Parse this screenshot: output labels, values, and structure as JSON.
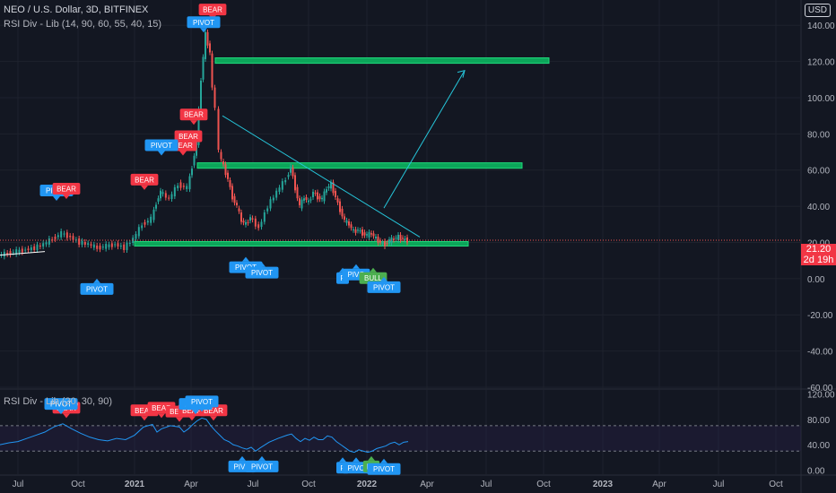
{
  "header": {
    "title": "NEO / U.S. Dollar, 3D, BITFINEX",
    "indicator": "RSI Div - Lib (14, 90, 60, 55, 40, 15)",
    "currency_button": "USD"
  },
  "price_tag": {
    "price": "21.20",
    "countdown": "2d 19h"
  },
  "rsi_pane": {
    "legend": "RSI Div - Lib (20, 30, 90)"
  },
  "colors": {
    "background": "#131722",
    "up": "#26a69a",
    "down": "#ef5350",
    "bear_label": "#f23645",
    "pivot_label": "#2196f3",
    "bull_label": "#4caf50",
    "green_zone": "#0ca55a",
    "trend_line": "#26c6da",
    "rsi_line": "#2196f3"
  },
  "icons": [
    "currency-selector-icon"
  ],
  "chart_data": [
    {
      "type": "line",
      "title": "NEO / U.S. Dollar, 3D, BITFINEX",
      "x_tick_labels": [
        "Jul",
        "Oct",
        "2021",
        "Apr",
        "Jul",
        "Oct",
        "2022",
        "Apr",
        "Jul",
        "Oct",
        "2023",
        "Apr",
        "Jul",
        "Oct"
      ],
      "y_tick_labels": [
        "140.00",
        "120.00",
        "100.00",
        "80.00",
        "60.00",
        "40.00",
        "20.00",
        "0.00",
        "-20.00",
        "-40.00",
        "-60.00"
      ],
      "ylim": [
        -60,
        150
      ],
      "last_price": 21.2,
      "series": [
        {
          "values": [
            [
              0,
              13
            ],
            [
              10,
              14
            ],
            [
              20,
              15
            ],
            [
              30,
              16
            ],
            [
              40,
              17
            ],
            [
              50,
              19
            ],
            [
              60,
              22
            ],
            [
              70,
              25
            ],
            [
              80,
              23
            ],
            [
              90,
              20
            ],
            [
              100,
              19
            ],
            [
              110,
              17
            ],
            [
              120,
              18
            ],
            [
              130,
              19
            ],
            [
              140,
              17
            ],
            [
              150,
              22
            ],
            [
              160,
              30
            ],
            [
              170,
              33
            ],
            [
              175,
              42
            ],
            [
              180,
              48
            ],
            [
              190,
              44
            ],
            [
              200,
              52
            ],
            [
              210,
              50
            ],
            [
              215,
              62
            ],
            [
              220,
              75
            ],
            [
              225,
              110
            ],
            [
              230,
              135
            ],
            [
              235,
              125
            ],
            [
              238,
              105
            ],
            [
              242,
              95
            ],
            [
              245,
              70
            ],
            [
              250,
              62
            ],
            [
              255,
              55
            ],
            [
              260,
              45
            ],
            [
              265,
              40
            ],
            [
              270,
              32
            ],
            [
              275,
              30
            ],
            [
              280,
              34
            ],
            [
              290,
              28
            ],
            [
              300,
              40
            ],
            [
              310,
              48
            ],
            [
              320,
              55
            ],
            [
              325,
              62
            ],
            [
              330,
              50
            ],
            [
              335,
              40
            ],
            [
              340,
              45
            ],
            [
              345,
              42
            ],
            [
              350,
              48
            ],
            [
              355,
              45
            ],
            [
              360,
              44
            ],
            [
              365,
              50
            ],
            [
              370,
              52
            ],
            [
              375,
              45
            ],
            [
              380,
              38
            ],
            [
              385,
              32
            ],
            [
              390,
              30
            ],
            [
              395,
              26
            ],
            [
              400,
              27
            ],
            [
              405,
              25
            ],
            [
              410,
              24
            ],
            [
              415,
              25
            ],
            [
              420,
              22
            ],
            [
              425,
              20
            ],
            [
              430,
              19
            ],
            [
              435,
              21
            ],
            [
              440,
              22
            ],
            [
              445,
              23
            ],
            [
              450,
              22
            ],
            [
              455,
              21.2
            ]
          ]
        }
      ],
      "zones": [
        {
          "name": "zone-high",
          "x_start": 240,
          "x_end": 612,
          "y_low": 119,
          "y_high": 122
        },
        {
          "name": "zone-mid",
          "x_start": 220,
          "x_end": 582,
          "y_low": 61,
          "y_high": 64
        },
        {
          "name": "zone-low",
          "x_start": 150,
          "x_end": 522,
          "y_low": 18,
          "y_high": 20.5
        }
      ],
      "lines": [
        {
          "name": "trend-line",
          "points": [
            [
              248,
              90
            ],
            [
              468,
              23
            ]
          ]
        },
        {
          "name": "projection-arrow",
          "points": [
            [
              428,
              39
            ],
            [
              518,
              115
            ]
          ]
        }
      ],
      "labels": [
        {
          "text": "BEAR",
          "kind": "bear",
          "x": 237,
          "y": 143,
          "dir": "down"
        },
        {
          "text": "PIVOT",
          "kind": "pivot",
          "x": 227,
          "y": 136,
          "dir": "down"
        },
        {
          "text": "BEAR",
          "kind": "bear",
          "x": 216,
          "y": 85,
          "dir": "down"
        },
        {
          "text": "BEAR",
          "kind": "bear",
          "x": 210,
          "y": 73,
          "dir": "down"
        },
        {
          "text": "BEAR",
          "kind": "bear",
          "x": 204,
          "y": 68,
          "dir": "down"
        },
        {
          "text": "PIVOT",
          "kind": "pivot",
          "x": 180,
          "y": 68,
          "dir": "down"
        },
        {
          "text": "BEAR",
          "kind": "bear",
          "x": 161,
          "y": 49,
          "dir": "down"
        },
        {
          "text": "PIVOT",
          "kind": "pivot",
          "x": 63,
          "y": 43,
          "dir": "down"
        },
        {
          "text": "BEAR",
          "kind": "bear",
          "x": 74,
          "y": 44,
          "dir": "down"
        },
        {
          "text": "PIVOT",
          "kind": "pivot",
          "x": 108,
          "y": 0,
          "dir": "up"
        },
        {
          "text": "PIVOT",
          "kind": "pivot",
          "x": 274,
          "y": 12,
          "dir": "up"
        },
        {
          "text": "PIVOT",
          "kind": "pivot",
          "x": 292,
          "y": 9,
          "dir": "up"
        },
        {
          "text": "P",
          "kind": "pivot",
          "x": 382,
          "y": 6,
          "dir": "up"
        },
        {
          "text": "PIVO",
          "kind": "pivot",
          "x": 397,
          "y": 8,
          "dir": "up"
        },
        {
          "text": "BULL",
          "kind": "bull",
          "x": 416,
          "y": 6,
          "dir": "up"
        },
        {
          "text": "PIVOT",
          "kind": "pivot",
          "x": 428,
          "y": 1,
          "dir": "up"
        }
      ]
    },
    {
      "type": "line",
      "title": "RSI Div - Lib (20, 30, 90)",
      "y_tick_labels": [
        "120.00",
        "80.00",
        "40.00",
        "0.00"
      ],
      "ylim": [
        -5,
        125
      ],
      "bands": [
        30,
        70
      ],
      "series": [
        {
          "values": [
            [
              0,
              40
            ],
            [
              10,
              43
            ],
            [
              20,
              45
            ],
            [
              30,
              50
            ],
            [
              40,
              55
            ],
            [
              50,
              60
            ],
            [
              60,
              68
            ],
            [
              70,
              73
            ],
            [
              80,
              65
            ],
            [
              90,
              58
            ],
            [
              100,
              52
            ],
            [
              110,
              48
            ],
            [
              120,
              46
            ],
            [
              130,
              50
            ],
            [
              140,
              48
            ],
            [
              150,
              55
            ],
            [
              160,
              68
            ],
            [
              170,
              72
            ],
            [
              175,
              60
            ],
            [
              180,
              65
            ],
            [
              190,
              70
            ],
            [
              200,
              68
            ],
            [
              205,
              60
            ],
            [
              210,
              65
            ],
            [
              215,
              72
            ],
            [
              220,
              78
            ],
            [
              225,
              82
            ],
            [
              230,
              80
            ],
            [
              235,
              70
            ],
            [
              240,
              62
            ],
            [
              245,
              55
            ],
            [
              250,
              48
            ],
            [
              255,
              45
            ],
            [
              260,
              40
            ],
            [
              265,
              38
            ],
            [
              270,
              35
            ],
            [
              275,
              33
            ],
            [
              280,
              36
            ],
            [
              285,
              30
            ],
            [
              290,
              35
            ],
            [
              300,
              44
            ],
            [
              310,
              50
            ],
            [
              320,
              55
            ],
            [
              325,
              57
            ],
            [
              330,
              50
            ],
            [
              335,
              45
            ],
            [
              340,
              50
            ],
            [
              345,
              47
            ],
            [
              350,
              52
            ],
            [
              355,
              48
            ],
            [
              360,
              48
            ],
            [
              365,
              54
            ],
            [
              370,
              52
            ],
            [
              375,
              45
            ],
            [
              380,
              40
            ],
            [
              385,
              35
            ],
            [
              390,
              30
            ],
            [
              395,
              28
            ],
            [
              400,
              32
            ],
            [
              405,
              30
            ],
            [
              410,
              28
            ],
            [
              415,
              30
            ],
            [
              420,
              34
            ],
            [
              425,
              36
            ],
            [
              430,
              38
            ],
            [
              435,
              42
            ],
            [
              440,
              44
            ],
            [
              445,
              40
            ],
            [
              450,
              44
            ],
            [
              455,
              45
            ]
          ]
        }
      ],
      "labels": [
        {
          "text": "BEAR",
          "kind": "bear",
          "x": 74,
          "y": 82,
          "dir": "down"
        },
        {
          "text": "PIVOT",
          "kind": "pivot",
          "x": 68,
          "y": 88,
          "dir": "down"
        },
        {
          "text": "BEAR",
          "kind": "bear",
          "x": 161,
          "y": 78,
          "dir": "down"
        },
        {
          "text": "BEAR",
          "kind": "bear",
          "x": 180,
          "y": 82,
          "dir": "down"
        },
        {
          "text": "BEAR",
          "kind": "bear",
          "x": 200,
          "y": 76,
          "dir": "down"
        },
        {
          "text": "BEAR",
          "kind": "bear",
          "x": 214,
          "y": 78,
          "dir": "down"
        },
        {
          "text": "BEAR",
          "kind": "bear",
          "x": 238,
          "y": 78,
          "dir": "down"
        },
        {
          "text": "PIVOT",
          "kind": "pivot",
          "x": 218,
          "y": 88,
          "dir": "down"
        },
        {
          "text": "PIVOT",
          "kind": "pivot",
          "x": 225,
          "y": 92,
          "dir": "down"
        },
        {
          "text": "PIVO",
          "kind": "pivot",
          "x": 270,
          "y": 22,
          "dir": "up"
        },
        {
          "text": "PIVOT",
          "kind": "pivot",
          "x": 292,
          "y": 22,
          "dir": "up"
        },
        {
          "text": "P",
          "kind": "pivot",
          "x": 382,
          "y": 20,
          "dir": "up"
        },
        {
          "text": "PIVO",
          "kind": "pivot",
          "x": 397,
          "y": 20,
          "dir": "up"
        },
        {
          "text": "BU",
          "kind": "bull",
          "x": 414,
          "y": 22,
          "dir": "up"
        },
        {
          "text": "PIVOT",
          "kind": "pivot",
          "x": 428,
          "y": 18,
          "dir": "up"
        }
      ]
    }
  ]
}
